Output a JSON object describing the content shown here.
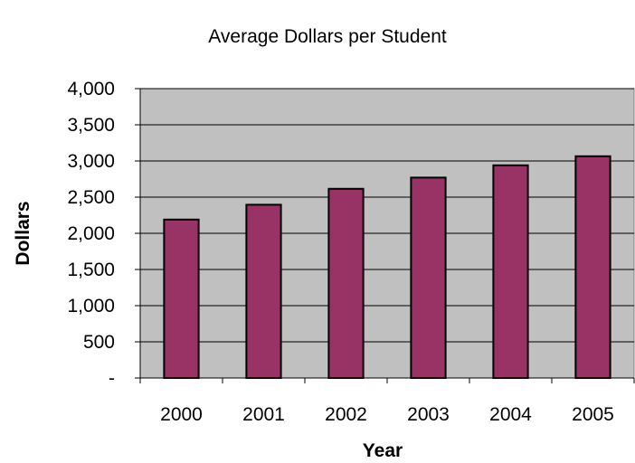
{
  "chart_data": {
    "type": "bar",
    "title": "Average Dollars per Student",
    "xlabel": "Year",
    "ylabel": "Dollars",
    "categories": [
      "2000",
      "2001",
      "2002",
      "2003",
      "2004",
      "2005"
    ],
    "values": [
      2190,
      2395,
      2615,
      2770,
      2940,
      3065
    ],
    "ylim": [
      0,
      4000
    ],
    "yticks": [
      0,
      500,
      1000,
      1500,
      2000,
      2500,
      3000,
      3500,
      4000
    ],
    "ytick_labels": [
      "-",
      "500",
      "1,000",
      "1,500",
      "2,000",
      "2,500",
      "3,000",
      "3,500",
      "4,000"
    ],
    "grid": true,
    "legend": "none",
    "colors": {
      "bar_fill": "#993366",
      "bar_stroke": "#000000",
      "plot_background": "#c0c0c0",
      "gridline": "#000000"
    }
  }
}
